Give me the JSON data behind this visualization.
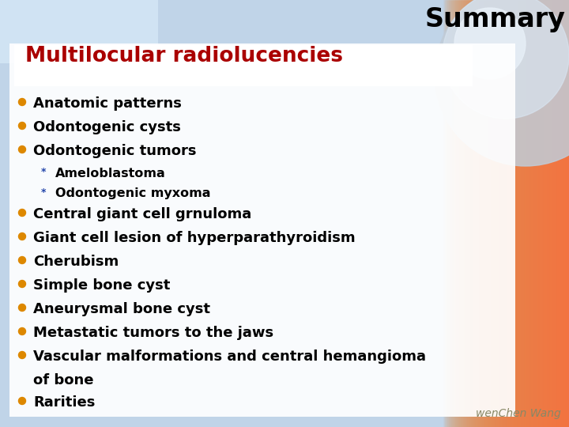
{
  "title": "Summary",
  "heading": "Multilocular radiolucencies",
  "heading_color": "#aa0000",
  "heading_bg": "#ffffff",
  "title_color": "#000000",
  "title_fontsize": 24,
  "heading_fontsize": 19,
  "bullet_color": "#dd8800",
  "sub_bullet_color": "#2244aa",
  "text_color": "#000000",
  "watermark": "wenChen Wang",
  "watermark_color": "#888866",
  "main_items": [
    {
      "text": "Anatomic patterns",
      "level": 0
    },
    {
      "text": "Odontogenic cysts",
      "level": 0
    },
    {
      "text": "Odontogenic tumors",
      "level": 0
    },
    {
      "text": "Ameloblastoma",
      "level": 1
    },
    {
      "text": "Odontogenic myxoma",
      "level": 1
    },
    {
      "text": "Central giant cell grnuloma",
      "level": 0
    },
    {
      "text": "Giant cell lesion of hyperparathyroidism",
      "level": 0
    },
    {
      "text": "Cherubism",
      "level": 0
    },
    {
      "text": "Simple bone cyst",
      "level": 0
    },
    {
      "text": "Aneurysmal bone cyst",
      "level": 0
    },
    {
      "text": "Metastatic tumors to the jaws",
      "level": 0
    },
    {
      "text": "Vascular malformations and central hemangioma",
      "level": 0
    },
    {
      "text": "of bone",
      "level": 2
    },
    {
      "text": "Rarities",
      "level": 0
    }
  ]
}
